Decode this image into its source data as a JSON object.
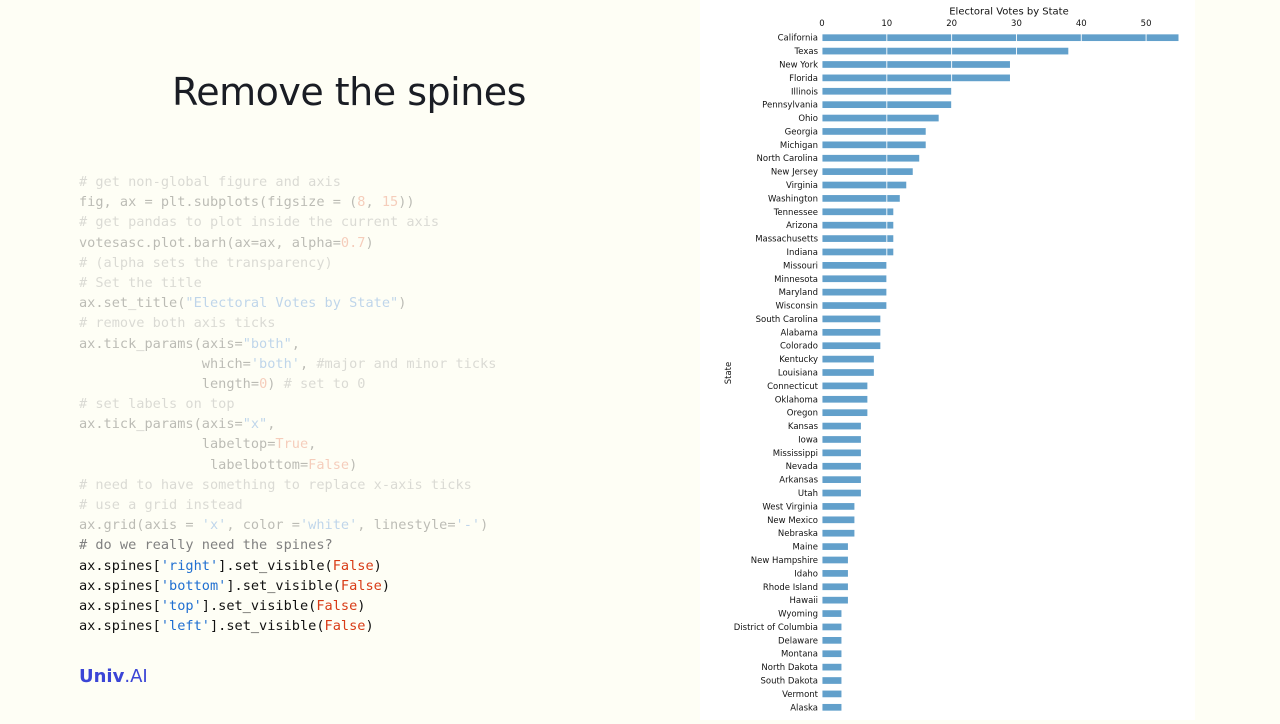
{
  "slide": {
    "title": "Remove the spines",
    "logo": {
      "bold": "Univ",
      "rest": ".AI"
    }
  },
  "code_lines": [
    {
      "faded": true,
      "tokens": [
        {
          "t": "# get non-global figure and axis",
          "c": "comment"
        }
      ]
    },
    {
      "faded": true,
      "tokens": [
        {
          "t": "fig, ax = plt.subplots(figsize = (",
          "c": "plain"
        },
        {
          "t": "8",
          "c": "num"
        },
        {
          "t": ", ",
          "c": "plain"
        },
        {
          "t": "15",
          "c": "num"
        },
        {
          "t": "))",
          "c": "plain"
        }
      ]
    },
    {
      "faded": true,
      "tokens": [
        {
          "t": "# get pandas to plot inside the current axis",
          "c": "comment"
        }
      ]
    },
    {
      "faded": true,
      "tokens": [
        {
          "t": "votesasc.plot.barh(ax=ax, alpha=",
          "c": "plain"
        },
        {
          "t": "0.7",
          "c": "num"
        },
        {
          "t": ")",
          "c": "plain"
        }
      ]
    },
    {
      "faded": true,
      "tokens": [
        {
          "t": "# (alpha sets the transparency)",
          "c": "comment"
        }
      ]
    },
    {
      "faded": true,
      "tokens": [
        {
          "t": "# Set the title",
          "c": "comment"
        }
      ]
    },
    {
      "faded": true,
      "tokens": [
        {
          "t": "ax.set_title(",
          "c": "plain"
        },
        {
          "t": "\"Electoral Votes by State\"",
          "c": "str"
        },
        {
          "t": ")",
          "c": "plain"
        }
      ]
    },
    {
      "faded": true,
      "tokens": [
        {
          "t": "# remove both axis ticks",
          "c": "comment"
        }
      ]
    },
    {
      "faded": true,
      "tokens": [
        {
          "t": "ax.tick_params(axis=",
          "c": "plain"
        },
        {
          "t": "\"both\"",
          "c": "str"
        },
        {
          "t": ",",
          "c": "plain"
        }
      ]
    },
    {
      "faded": true,
      "tokens": [
        {
          "t": "               which=",
          "c": "plain"
        },
        {
          "t": "'both'",
          "c": "str"
        },
        {
          "t": ", ",
          "c": "plain"
        },
        {
          "t": "#major and minor ticks",
          "c": "comment"
        }
      ]
    },
    {
      "faded": true,
      "tokens": [
        {
          "t": "               length=",
          "c": "plain"
        },
        {
          "t": "0",
          "c": "num"
        },
        {
          "t": ") ",
          "c": "plain"
        },
        {
          "t": "# set to 0",
          "c": "comment"
        }
      ]
    },
    {
      "faded": true,
      "tokens": [
        {
          "t": "# set labels on top",
          "c": "comment"
        }
      ]
    },
    {
      "faded": true,
      "tokens": [
        {
          "t": "ax.tick_params(axis=",
          "c": "plain"
        },
        {
          "t": "\"x\"",
          "c": "str"
        },
        {
          "t": ",",
          "c": "plain"
        }
      ]
    },
    {
      "faded": true,
      "tokens": [
        {
          "t": "               labeltop=",
          "c": "plain"
        },
        {
          "t": "True",
          "c": "num"
        },
        {
          "t": ",",
          "c": "plain"
        }
      ]
    },
    {
      "faded": true,
      "tokens": [
        {
          "t": "                labelbottom=",
          "c": "plain"
        },
        {
          "t": "False",
          "c": "num"
        },
        {
          "t": ")",
          "c": "plain"
        }
      ]
    },
    {
      "faded": true,
      "tokens": [
        {
          "t": "# need to have something to replace x-axis ticks",
          "c": "comment"
        }
      ]
    },
    {
      "faded": true,
      "tokens": [
        {
          "t": "# use a grid instead",
          "c": "comment"
        }
      ]
    },
    {
      "faded": true,
      "tokens": [
        {
          "t": "ax.grid(axis = ",
          "c": "plain"
        },
        {
          "t": "'x'",
          "c": "str"
        },
        {
          "t": ", color =",
          "c": "plain"
        },
        {
          "t": "'white'",
          "c": "str"
        },
        {
          "t": ", linestyle=",
          "c": "plain"
        },
        {
          "t": "'-'",
          "c": "str"
        },
        {
          "t": ")",
          "c": "plain"
        }
      ]
    },
    {
      "faded": false,
      "tokens": [
        {
          "t": "# do we really need the spines?",
          "c": "comment"
        }
      ]
    },
    {
      "faded": false,
      "tokens": [
        {
          "t": "ax.spines[",
          "c": "plain"
        },
        {
          "t": "'right'",
          "c": "str"
        },
        {
          "t": "].set_visible(",
          "c": "plain"
        },
        {
          "t": "False",
          "c": "kw"
        },
        {
          "t": ")",
          "c": "plain"
        }
      ]
    },
    {
      "faded": false,
      "tokens": [
        {
          "t": "ax.spines[",
          "c": "plain"
        },
        {
          "t": "'bottom'",
          "c": "str"
        },
        {
          "t": "].set_visible(",
          "c": "plain"
        },
        {
          "t": "False",
          "c": "kw"
        },
        {
          "t": ")",
          "c": "plain"
        }
      ]
    },
    {
      "faded": false,
      "tokens": [
        {
          "t": "ax.spines[",
          "c": "plain"
        },
        {
          "t": "'top'",
          "c": "str"
        },
        {
          "t": "].set_visible(",
          "c": "plain"
        },
        {
          "t": "False",
          "c": "kw"
        },
        {
          "t": ")",
          "c": "plain"
        }
      ]
    },
    {
      "faded": false,
      "tokens": [
        {
          "t": "ax.spines[",
          "c": "plain"
        },
        {
          "t": "'left'",
          "c": "str"
        },
        {
          "t": "].set_visible(",
          "c": "plain"
        },
        {
          "t": "False",
          "c": "kw"
        },
        {
          "t": ")",
          "c": "plain"
        }
      ]
    }
  ],
  "chart_data": {
    "type": "bar",
    "orientation": "horizontal",
    "title": "Electoral Votes by State",
    "xlabel": "",
    "ylabel": "State",
    "xlim": [
      0,
      55
    ],
    "xticks": [
      0,
      10,
      20,
      30,
      40,
      50
    ],
    "x_tick_labels_position": "top",
    "grid": {
      "axis": "x",
      "color": "#ffffff",
      "linestyle": "solid"
    },
    "spines": false,
    "bar_color": "#62a0cb",
    "categories": [
      "California",
      "Texas",
      "New York",
      "Florida",
      "Illinois",
      "Pennsylvania",
      "Ohio",
      "Georgia",
      "Michigan",
      "North Carolina",
      "New Jersey",
      "Virginia",
      "Washington",
      "Tennessee",
      "Arizona",
      "Massachusetts",
      "Indiana",
      "Missouri",
      "Minnesota",
      "Maryland",
      "Wisconsin",
      "South Carolina",
      "Alabama",
      "Colorado",
      "Kentucky",
      "Louisiana",
      "Connecticut",
      "Oklahoma",
      "Oregon",
      "Kansas",
      "Iowa",
      "Mississippi",
      "Nevada",
      "Arkansas",
      "Utah",
      "West Virginia",
      "New Mexico",
      "Nebraska",
      "Maine",
      "New Hampshire",
      "Idaho",
      "Rhode Island",
      "Hawaii",
      "Wyoming",
      "District of Columbia",
      "Delaware",
      "Montana",
      "North Dakota",
      "South Dakota",
      "Vermont",
      "Alaska"
    ],
    "values": [
      55,
      38,
      29,
      29,
      20,
      20,
      18,
      16,
      16,
      15,
      14,
      13,
      12,
      11,
      11,
      11,
      11,
      10,
      10,
      10,
      10,
      9,
      9,
      9,
      8,
      8,
      7,
      7,
      7,
      6,
      6,
      6,
      6,
      6,
      6,
      5,
      5,
      5,
      4,
      4,
      4,
      4,
      4,
      3,
      3,
      3,
      3,
      3,
      3,
      3,
      3
    ]
  }
}
